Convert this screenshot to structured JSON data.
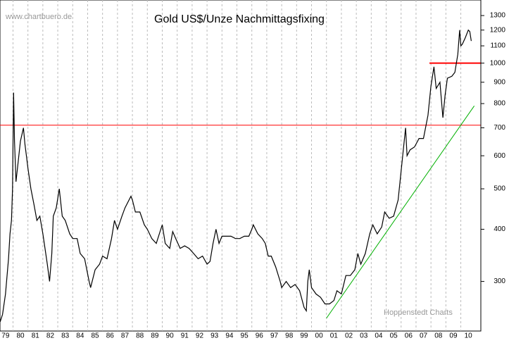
{
  "chart_data": {
    "type": "line",
    "title": "Gold US$/Unze Nachmittagsfixing",
    "watermark": "www.chartbuero.de",
    "source": "Hoppenstedt Charts",
    "log_y": true,
    "grid": true,
    "xlim": [
      1979.13,
      2011.2
    ],
    "ylim": [
      230,
      1400
    ],
    "yticks": [
      300,
      400,
      500,
      600,
      700,
      800,
      900,
      1000,
      1100,
      1200,
      1300
    ],
    "xticks": [
      {
        "value": 1979,
        "label": "79"
      },
      {
        "value": 1980,
        "label": "80"
      },
      {
        "value": 1981,
        "label": "81"
      },
      {
        "value": 1982,
        "label": "82"
      },
      {
        "value": 1983,
        "label": "83"
      },
      {
        "value": 1984,
        "label": "84"
      },
      {
        "value": 1985,
        "label": "85"
      },
      {
        "value": 1986,
        "label": "86"
      },
      {
        "value": 1987,
        "label": "87"
      },
      {
        "value": 1988,
        "label": "88"
      },
      {
        "value": 1989,
        "label": "89"
      },
      {
        "value": 1990,
        "label": "90"
      },
      {
        "value": 1991,
        "label": "91"
      },
      {
        "value": 1992,
        "label": "92"
      },
      {
        "value": 1993,
        "label": "93"
      },
      {
        "value": 1994,
        "label": "94"
      },
      {
        "value": 1995,
        "label": "95"
      },
      {
        "value": 1996,
        "label": "96"
      },
      {
        "value": 1997,
        "label": "97"
      },
      {
        "value": 1998,
        "label": "98"
      },
      {
        "value": 1999,
        "label": "99"
      },
      {
        "value": 2000,
        "label": "00"
      },
      {
        "value": 2001,
        "label": "01"
      },
      {
        "value": 2002,
        "label": "02"
      },
      {
        "value": 2003,
        "label": "03"
      },
      {
        "value": 2004,
        "label": "04"
      },
      {
        "value": 2005,
        "label": "05"
      },
      {
        "value": 2006,
        "label": "06"
      },
      {
        "value": 2007,
        "label": "07"
      },
      {
        "value": 2008,
        "label": "08"
      },
      {
        "value": 2009,
        "label": "09"
      },
      {
        "value": 2010,
        "label": "10"
      }
    ],
    "hlines": [
      {
        "y": 710,
        "color": "#ff0000"
      },
      {
        "y": 1000,
        "x_start": 2007.9,
        "color": "#ff0000"
      }
    ],
    "trendline": {
      "x": [
        2001.0,
        2010.9
      ],
      "y": [
        245,
        790
      ],
      "color": "#00b000"
    },
    "series": [
      {
        "color": "#000000",
        "x": [
          1979.14,
          1979.3,
          1979.5,
          1979.7,
          1979.8,
          1979.9,
          1979.97,
          1980.04,
          1980.1,
          1980.2,
          1980.3,
          1980.5,
          1980.7,
          1980.8,
          1980.9,
          1981.0,
          1981.2,
          1981.4,
          1981.6,
          1981.8,
          1982.0,
          1982.3,
          1982.45,
          1982.6,
          1982.7,
          1982.9,
          1983.1,
          1983.3,
          1983.5,
          1983.8,
          1984.0,
          1984.3,
          1984.5,
          1984.8,
          1985.1,
          1985.2,
          1985.5,
          1985.8,
          1986.0,
          1986.3,
          1986.6,
          1986.8,
          1987.0,
          1987.3,
          1987.5,
          1987.9,
          1988.0,
          1988.2,
          1988.5,
          1988.8,
          1989.0,
          1989.3,
          1989.6,
          1989.9,
          1990.0,
          1990.2,
          1990.5,
          1990.7,
          1990.9,
          1991.2,
          1991.5,
          1991.8,
          1992.1,
          1992.4,
          1992.7,
          1993.0,
          1993.2,
          1993.4,
          1993.6,
          1993.8,
          1994.0,
          1994.3,
          1994.6,
          1994.9,
          1995.2,
          1995.5,
          1995.8,
          1996.0,
          1996.1,
          1996.4,
          1996.7,
          1996.9,
          1997.1,
          1997.3,
          1997.6,
          1997.9,
          1998.0,
          1998.3,
          1998.6,
          1998.9,
          1999.2,
          1999.5,
          1999.65,
          1999.75,
          1999.85,
          2000.0,
          2000.3,
          2000.6,
          2000.9,
          2001.2,
          2001.5,
          2001.7,
          2002.0,
          2002.3,
          2002.6,
          2002.9,
          2003.1,
          2003.3,
          2003.6,
          2003.9,
          2004.1,
          2004.4,
          2004.7,
          2004.9,
          2005.2,
          2005.5,
          2005.8,
          2006.0,
          2006.3,
          2006.4,
          2006.6,
          2006.9,
          2007.2,
          2007.5,
          2007.8,
          2008.0,
          2008.2,
          2008.35,
          2008.6,
          2008.8,
          2008.95,
          2009.1,
          2009.4,
          2009.6,
          2009.8,
          2009.92,
          2010.0,
          2010.1,
          2010.3,
          2010.5,
          2010.6,
          2010.7
        ],
        "values": [
          240,
          250,
          280,
          340,
          390,
          420,
          500,
          850,
          650,
          520,
          560,
          650,
          700,
          640,
          600,
          560,
          500,
          460,
          420,
          430,
          390,
          330,
          300,
          350,
          430,
          450,
          500,
          430,
          420,
          390,
          380,
          380,
          350,
          340,
          300,
          290,
          320,
          330,
          345,
          340,
          380,
          420,
          400,
          430,
          450,
          480,
          470,
          440,
          440,
          410,
          400,
          380,
          370,
          400,
          410,
          370,
          360,
          395,
          380,
          360,
          365,
          360,
          350,
          340,
          345,
          330,
          335,
          370,
          400,
          370,
          385,
          385,
          385,
          380,
          380,
          385,
          385,
          400,
          410,
          390,
          380,
          370,
          345,
          345,
          325,
          300,
          290,
          300,
          290,
          295,
          285,
          260,
          255,
          300,
          320,
          290,
          280,
          275,
          265,
          265,
          270,
          285,
          280,
          310,
          310,
          320,
          350,
          330,
          350,
          390,
          410,
          390,
          405,
          440,
          425,
          430,
          470,
          550,
          700,
          600,
          620,
          630,
          660,
          660,
          750,
          880,
          980,
          870,
          900,
          740,
          840,
          920,
          930,
          950,
          1050,
          1200,
          1100,
          1110,
          1150,
          1200,
          1190,
          1130
        ]
      }
    ]
  }
}
